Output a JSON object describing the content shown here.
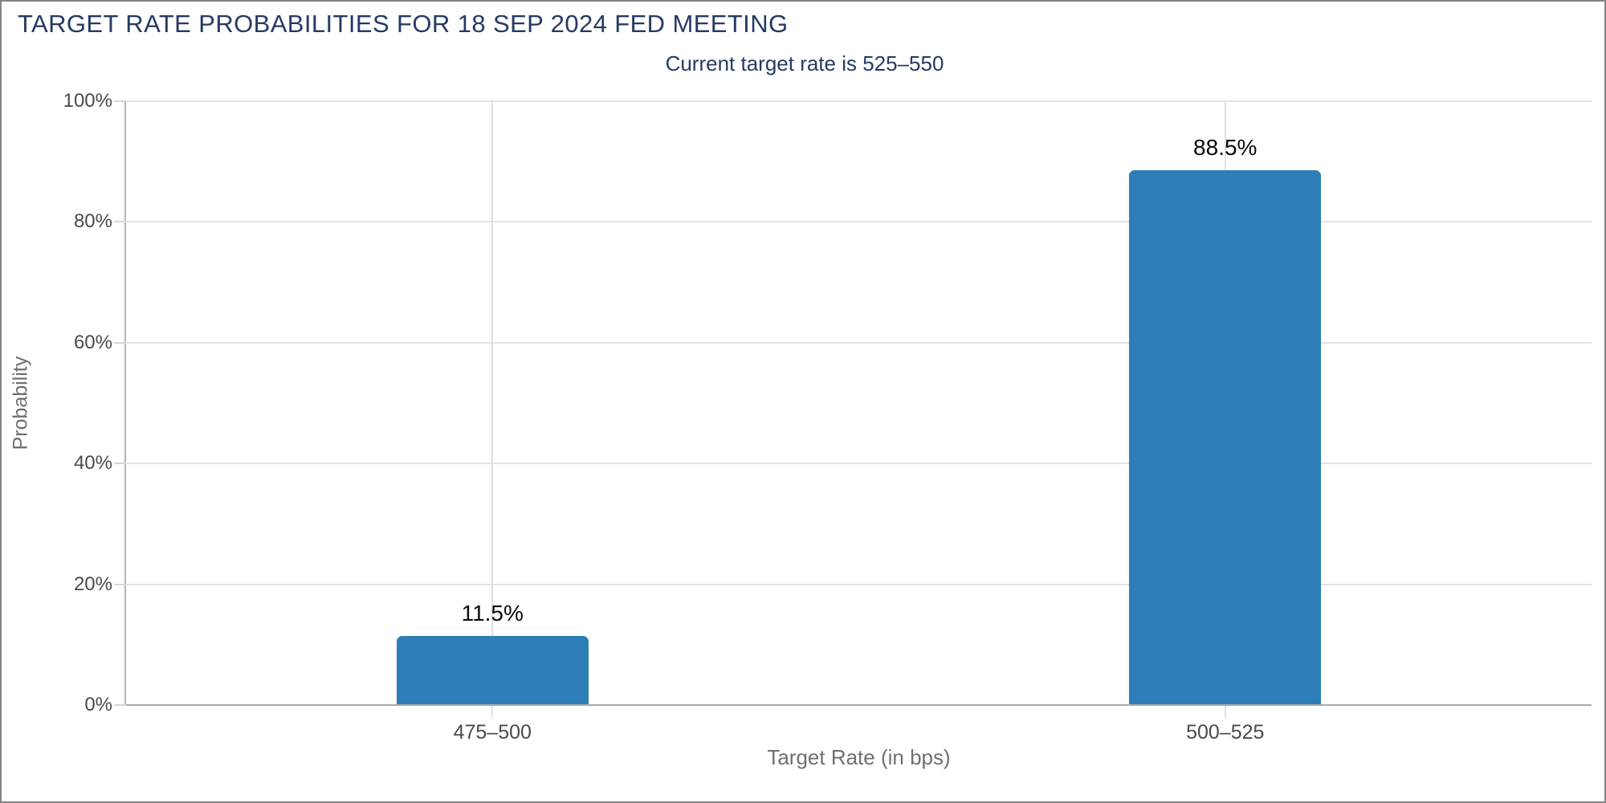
{
  "header": {
    "title": "TARGET RATE PROBABILITIES FOR 18 SEP 2024 FED MEETING",
    "subtitle": "Current target rate is 525–550"
  },
  "chart_data": {
    "type": "bar",
    "title": "TARGET RATE PROBABILITIES FOR 18 SEP 2024 FED MEETING",
    "subtitle": "Current target rate is 525–550",
    "categories": [
      "475–500",
      "500–525"
    ],
    "values": [
      11.5,
      88.5
    ],
    "value_labels": [
      "11.5%",
      "88.5%"
    ],
    "xlabel": "Target Rate (in bps)",
    "ylabel": "Probability",
    "ylim": [
      0,
      100
    ],
    "yticks": [
      0,
      20,
      40,
      60,
      80,
      100
    ],
    "ytick_labels": [
      "0%",
      "20%",
      "40%",
      "60%",
      "80%",
      "100%"
    ],
    "grid": true,
    "legend": "none",
    "bar_color": "#2d7db6"
  },
  "colors": {
    "title_navy": "#263a63",
    "bar_blue": "#2d7db6",
    "tick_text_gray": "#4a4a4a",
    "axis_title_gray": "#6f6f6f",
    "gridline_gray": "#e3e3e3",
    "baseline_gray": "#a9a9a9",
    "value_label_black": "#0a0a0a",
    "frame_border_gray": "#848484"
  }
}
